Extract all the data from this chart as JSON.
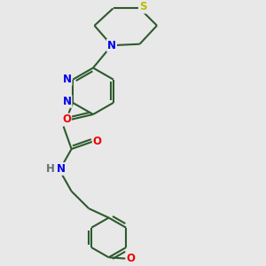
{
  "bg_color": "#e8e8e8",
  "bond_color": "#2d5a2d",
  "bond_width": 1.5,
  "atom_colors": {
    "N": "#0000ee",
    "O": "#ee0000",
    "S": "#bbbb00",
    "H": "#607070",
    "C": "#2d5a2d"
  },
  "font_size": 8.5,
  "fig_size": [
    3.0,
    3.0
  ],
  "dpi": 100
}
